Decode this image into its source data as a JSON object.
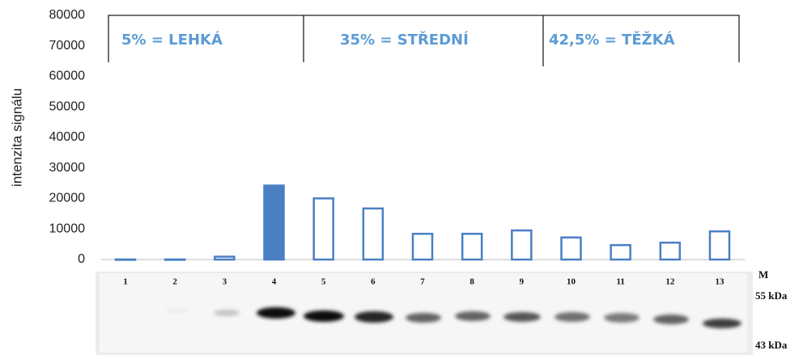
{
  "chart_data": {
    "type": "bar",
    "y_label": "intenzita signálu",
    "categories": [
      "1",
      "2",
      "3",
      "4",
      "5",
      "6",
      "7",
      "8",
      "9",
      "10",
      "11",
      "12",
      "13"
    ],
    "values": [
      300,
      300,
      1200,
      24500,
      20300,
      17000,
      8700,
      8700,
      9800,
      7500,
      5000,
      5800,
      9500
    ],
    "color": "#4a7fc4",
    "filled": [
      false,
      false,
      false,
      true,
      false,
      false,
      false,
      false,
      false,
      false,
      false,
      false,
      false
    ],
    "ylim": [
      0,
      80000
    ],
    "yticks": [
      0,
      10000,
      20000,
      30000,
      40000,
      50000,
      60000,
      70000,
      80000
    ],
    "groups": [
      "5% = LEHKÁ",
      "35% = STŘEDNÍ",
      "42,5% = TĚŽKÁ"
    ],
    "marker_label": "M",
    "marker_bands": [
      "55 kDa",
      "43 kDa"
    ]
  }
}
